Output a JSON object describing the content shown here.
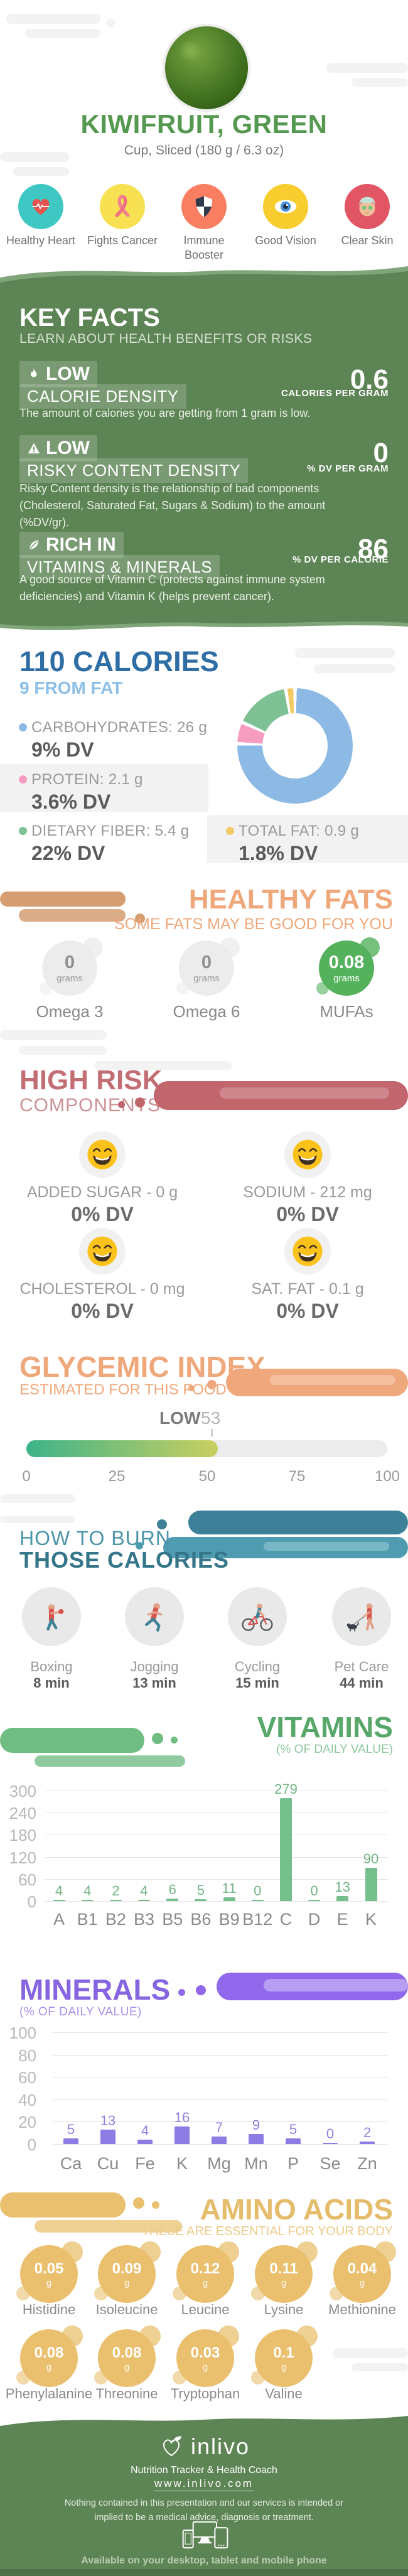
{
  "page": {
    "background": "#ffffff",
    "brand_green": "#5d8455"
  },
  "header": {
    "title": "KIWIFRUIT, GREEN",
    "subtitle": "Cup, Sliced (180 g / 6.3 oz)",
    "photo": "green-leafy-food-photo",
    "benefits": [
      {
        "icon": "heart-pulse-icon",
        "label": "Healthy Heart",
        "circle_color": "#3fc7c3"
      },
      {
        "icon": "ribbon-icon",
        "label": "Fights Cancer",
        "circle_color": "#f7e052"
      },
      {
        "icon": "shield-icon",
        "label": "Immune Booster",
        "circle_color": "#f97e62"
      },
      {
        "icon": "eye-icon",
        "label": "Good Vision",
        "circle_color": "#f8cd2e"
      },
      {
        "icon": "face-icon",
        "label": "Clear Skin",
        "circle_color": "#e25565"
      }
    ]
  },
  "key_facts": {
    "title": "KEY FACTS",
    "subtitle": "LEARN ABOUT HEALTH BENEFITS OR RISKS",
    "items": [
      {
        "icon": "flame-icon",
        "badge": "LOW",
        "name": "CALORIE DENSITY",
        "value": "0.6",
        "unit": "CALORIES PER GRAM",
        "description": "The amount of calories you are getting from 1 gram is low."
      },
      {
        "icon": "warning-icon",
        "badge": "LOW",
        "name": "RISKY CONTENT DENSITY",
        "value": "0",
        "unit": "% DV PER GRAM",
        "description": "Risky Content density is the relationship of bad components (Cholesterol, Saturated Fat, Sugars & Sodium) to the amount (%DV/gr)."
      },
      {
        "icon": "leaf-icon",
        "badge": "RICH IN",
        "name": "VITAMINS & MINERALS",
        "value": "86",
        "unit": "% DV PER CALORIE",
        "description": "A good source of Vitamin C (protects against immune system deficiencies) and Vitamin K (helps prevent cancer)."
      }
    ]
  },
  "calories": {
    "title": "110 CALORIES",
    "subtitle": "9 FROM FAT",
    "macros": [
      {
        "name": "CARBOHYDRATES: 26 g",
        "dv": "9% DV",
        "color": "#8cbae4"
      },
      {
        "name": "PROTEIN: 2.1 g",
        "dv": "3.6% DV",
        "color": "#f79cc1"
      },
      {
        "name": "DIETARY FIBER: 5.4 g",
        "dv": "22% DV",
        "color": "#7dc194"
      },
      {
        "name": "TOTAL FAT: 0.9 g",
        "dv": "1.8% DV",
        "color": "#f2cb66"
      }
    ]
  },
  "healthy_fats": {
    "title": "HEALTHY FATS",
    "subtitle": "SOME FATS MAY BE GOOD FOR YOU",
    "items": [
      {
        "value": "0",
        "unit": "grams",
        "label": "Omega 3",
        "highlight": false
      },
      {
        "value": "0",
        "unit": "grams",
        "label": "Omega 6",
        "highlight": false
      },
      {
        "value": "0.08",
        "unit": "grams",
        "label": "MUFAs",
        "highlight": true
      }
    ]
  },
  "high_risk": {
    "title_line1": "HIGH RISK",
    "title_line2": "COMPONENTS",
    "items": [
      {
        "icon": "grin-emoji-icon",
        "label": "ADDED SUGAR - 0 g",
        "dv": "0% DV"
      },
      {
        "icon": "grin-emoji-icon",
        "label": "SODIUM - 212 mg",
        "dv": "0% DV"
      },
      {
        "icon": "grin-emoji-icon",
        "label": "CHOLESTEROL - 0 mg",
        "dv": "0% DV"
      },
      {
        "icon": "grin-emoji-icon",
        "label": "SAT. FAT - 0.1 g",
        "dv": "0% DV"
      }
    ]
  },
  "glycemic": {
    "title": "GLYCEMIC INDEX",
    "subtitle": "ESTIMATED FOR THIS FOOD",
    "level_label": "LOW",
    "value": 53,
    "range": [
      0,
      100
    ],
    "ticks": [
      "0",
      "25",
      "50",
      "75",
      "100"
    ]
  },
  "burn": {
    "title_line1": "HOW TO BURN",
    "title_line2": "THOSE CALORIES",
    "activities": [
      {
        "icon": "boxing-icon",
        "label": "Boxing",
        "minutes": "8 min"
      },
      {
        "icon": "jogging-icon",
        "label": "Jogging",
        "minutes": "13 min"
      },
      {
        "icon": "cycling-icon",
        "label": "Cycling",
        "minutes": "15 min"
      },
      {
        "icon": "pet-care-icon",
        "label": "Pet Care",
        "minutes": "44 min"
      }
    ]
  },
  "vitamins": {
    "title": "VITAMINS",
    "subtitle": "(% OF DAILY VALUE)"
  },
  "minerals": {
    "title": "MINERALS",
    "subtitle": "(% OF DAILY VALUE)"
  },
  "amino": {
    "title": "AMINO ACIDS",
    "subtitle": "THESE ARE ESSENTIAL FOR YOUR BODY",
    "unit": "g",
    "items": [
      {
        "name": "Histidine",
        "value": "0.05"
      },
      {
        "name": "Isoleucine",
        "value": "0.09"
      },
      {
        "name": "Leucine",
        "value": "0.12"
      },
      {
        "name": "Lysine",
        "value": "0.11"
      },
      {
        "name": "Methionine",
        "value": "0.04"
      },
      {
        "name": "Phenylalanine",
        "value": "0.08"
      },
      {
        "name": "Threonine",
        "value": "0.08"
      },
      {
        "name": "Tryptophan",
        "value": "0.03"
      },
      {
        "name": "Valine",
        "value": "0.1"
      }
    ]
  },
  "footer": {
    "brand": "inlivo",
    "tagline": "Nutrition Tracker & Health Coach",
    "url": "www.inlivo.com",
    "disclaimer": "Nothing contained in this presentation and our services is intended or implied to be a medical advice, diagnosis or treatment.",
    "availability": "Available on your desktop, tablet and mobile phone"
  },
  "chart_data": [
    {
      "type": "pie",
      "title": "Calories composition",
      "donut": true,
      "labels": [
        "Carbohydrates",
        "Protein",
        "Dietary Fiber",
        "Total Fat"
      ],
      "values": [
        26,
        2.1,
        5.4,
        0.9
      ],
      "colors": [
        "#8cbae4",
        "#f79cc1",
        "#7dc194",
        "#f2cb66"
      ]
    },
    {
      "type": "bar",
      "title": "VITAMINS (% OF DAILY VALUE)",
      "categories": [
        "A",
        "B1",
        "B2",
        "B3",
        "B5",
        "B6",
        "B9",
        "B12",
        "C",
        "D",
        "E",
        "K"
      ],
      "values": [
        4,
        4,
        2,
        4,
        6,
        5,
        11,
        0,
        279,
        0,
        13,
        90
      ],
      "ylim": [
        0,
        300
      ],
      "yticks": [
        0,
        60,
        120,
        180,
        240,
        300
      ],
      "bar_color": "#74bf8c",
      "value_color": "#74b585",
      "grid": true
    },
    {
      "type": "bar",
      "title": "MINERALS (% OF DAILY VALUE)",
      "categories": [
        "Ca",
        "Cu",
        "Fe",
        "K",
        "Mg",
        "Mn",
        "P",
        "Se",
        "Zn"
      ],
      "values": [
        5,
        13,
        4,
        16,
        7,
        9,
        5,
        0,
        2
      ],
      "ylim": [
        0,
        100
      ],
      "yticks": [
        0,
        20,
        40,
        60,
        80,
        100
      ],
      "bar_color": "#8d7ce4",
      "value_color": "#9181e0",
      "grid": true
    },
    {
      "type": "gauge",
      "title": "Glycemic index scale",
      "value": 53,
      "label": "LOW",
      "range": [
        0,
        100
      ],
      "ticks": [
        0,
        25,
        50,
        75,
        100
      ]
    }
  ]
}
